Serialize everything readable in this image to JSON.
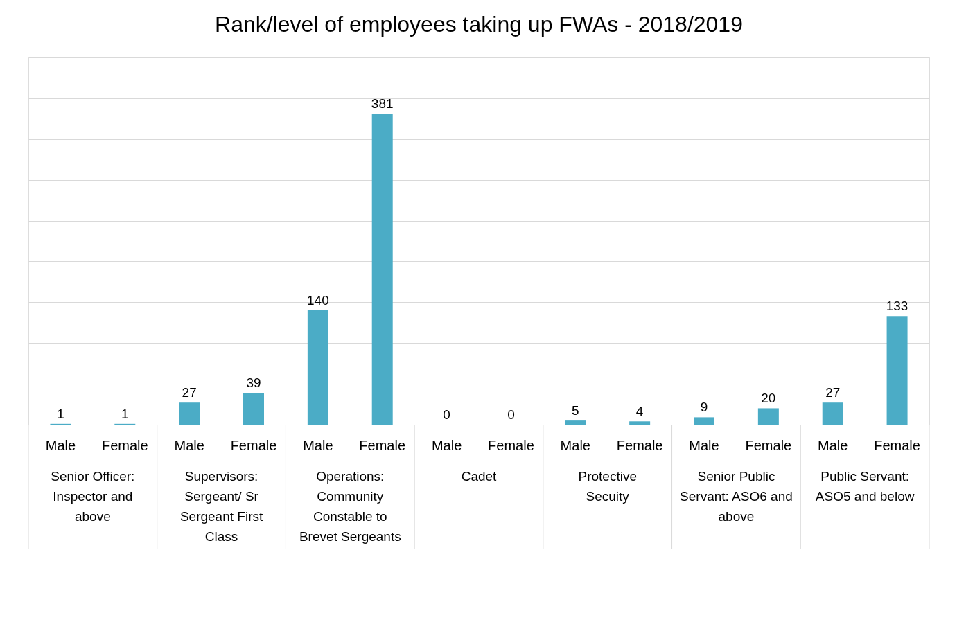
{
  "chart_data": {
    "type": "bar",
    "title": "Rank/level of employees taking up FWAs - 2018/2019",
    "categories": [
      "Male",
      "Female",
      "Male",
      "Female",
      "Male",
      "Female",
      "Male",
      "Female",
      "Male",
      "Female",
      "Male",
      "Female",
      "Male",
      "Female"
    ],
    "values": [
      1,
      1,
      27,
      39,
      140,
      381,
      0,
      0,
      5,
      4,
      9,
      20,
      27,
      133
    ],
    "color": "#4bacc6",
    "ylim": [
      0,
      450
    ],
    "yticks": [
      {
        "value": 0,
        "label": null
      },
      {
        "value": 50,
        "label": null
      },
      {
        "value": 100,
        "label": null
      },
      {
        "value": 150,
        "label": null
      },
      {
        "value": 200,
        "label": null
      },
      {
        "value": 250,
        "label": null
      },
      {
        "value": 300,
        "label": null
      },
      {
        "value": 350,
        "label": null
      },
      {
        "value": 400,
        "label": null
      },
      {
        "value": 450,
        "label": null
      }
    ],
    "tick_labels": "x",
    "grid": "y",
    "data_labels": true,
    "annotations": [
      "Senior Officer: Inspector and above",
      "Supervisors: Sergeant/ Sr Sergeant First Class",
      "Operations: Community Constable to Brevet Sergeants",
      "Cadet",
      "Protective Secuity",
      "Senior Public Servant: ASO6 and above",
      "Public Servant: ASO5 and below"
    ]
  }
}
